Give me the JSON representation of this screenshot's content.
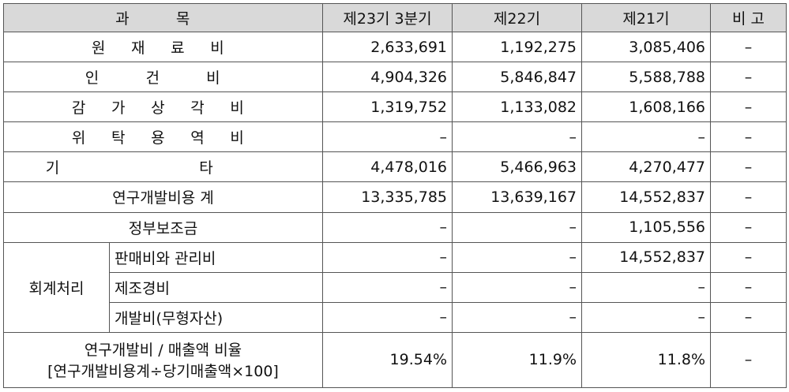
{
  "table": {
    "headers": {
      "item": "과 목",
      "q3": "제23기 3분기",
      "y22": "제22기",
      "y21": "제21기",
      "remark": "비 고"
    },
    "rows": [
      {
        "label": "원 재 료 비",
        "q3": "2,633,691",
        "y22": "1,192,275",
        "y21": "3,085,406",
        "remark": "–"
      },
      {
        "label": "인 건 비",
        "q3": "4,904,326",
        "y22": "5,846,847",
        "y21": "5,588,788",
        "remark": "–"
      },
      {
        "label": "감 가 상 각 비",
        "q3": "1,319,752",
        "y22": "1,133,082",
        "y21": "1,608,166",
        "remark": "–"
      },
      {
        "label": "위 탁 용 역 비",
        "q3": "–",
        "y22": "–",
        "y21": "–",
        "remark": "–"
      },
      {
        "label": "기 타",
        "q3": "4,478,016",
        "y22": "5,466,963",
        "y21": "4,270,477",
        "remark": "–"
      },
      {
        "label": "연구개발비용 계",
        "q3": "13,335,785",
        "y22": "13,639,167",
        "y21": "14,552,837",
        "remark": "–"
      },
      {
        "label": "정부보조금",
        "q3": "–",
        "y22": "–",
        "y21": "1,105,556",
        "remark": "–"
      }
    ],
    "accounting": {
      "group_label": "회계처리",
      "rows": [
        {
          "label": "판매비와 관리비",
          "q3": "–",
          "y22": "–",
          "y21": "14,552,837",
          "remark": "–"
        },
        {
          "label": "제조경비",
          "q3": "–",
          "y22": "–",
          "y21": "–",
          "remark": "–"
        },
        {
          "label": "개발비(무형자산)",
          "q3": "–",
          "y22": "–",
          "y21": "–",
          "remark": "–"
        }
      ]
    },
    "ratio": {
      "label_line1": "연구개발비 / 매출액 비율",
      "label_line2": "[연구개발비용계÷당기매출액×100]",
      "q3": "19.54%",
      "y22": "11.9%",
      "y21": "11.8%",
      "remark": "–"
    }
  }
}
